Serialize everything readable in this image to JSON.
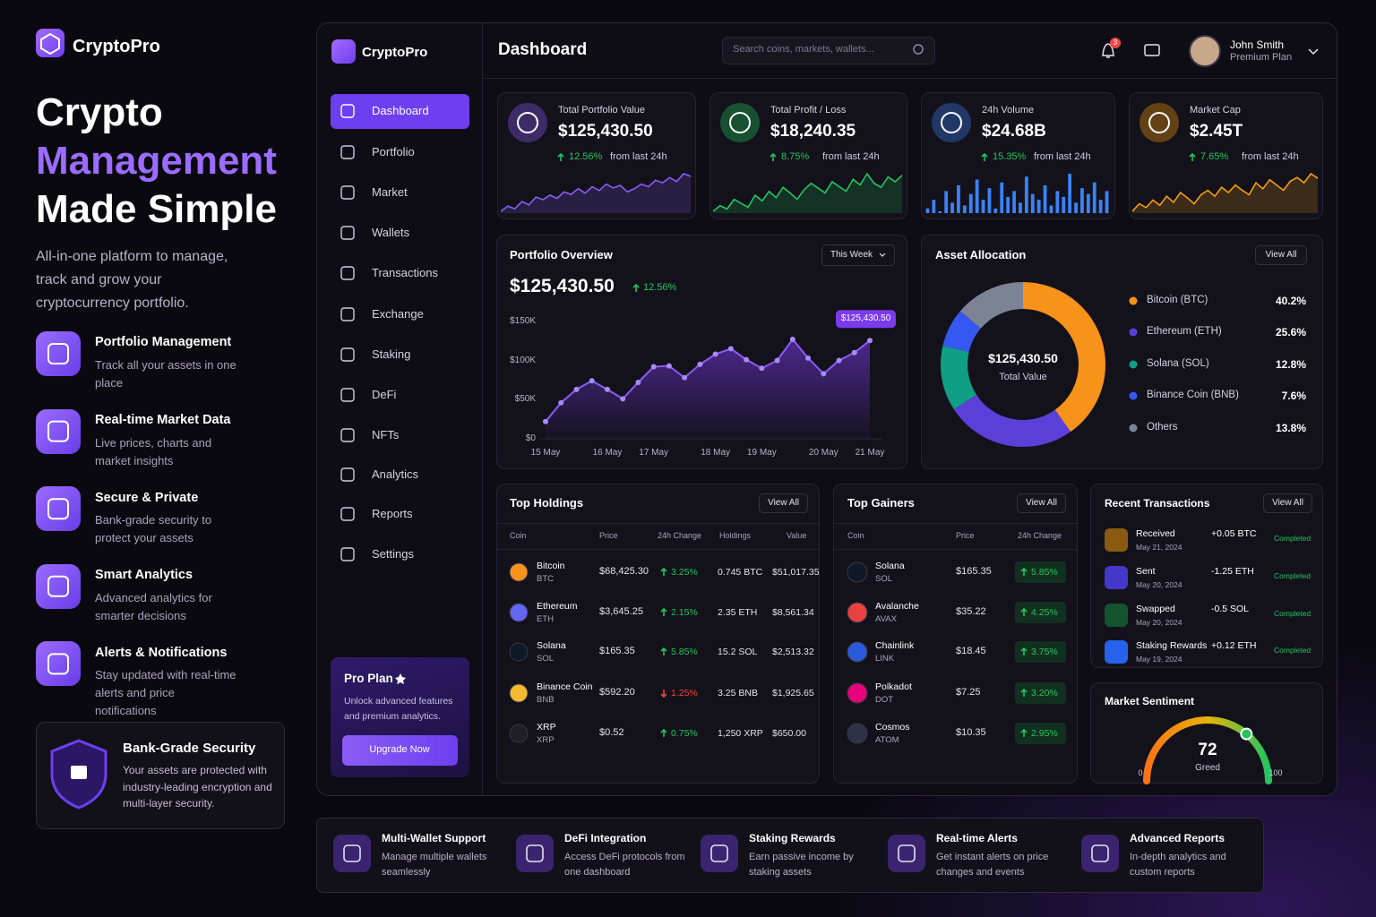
{
  "promo": {
    "brand": "CryptoPro",
    "headline": [
      "Crypto",
      "Management",
      "Made Simple"
    ],
    "subtitle": "All-in-one platform to manage, track and grow your cryptocurrency portfolio.",
    "features": [
      {
        "title": "Portfolio Management",
        "desc": "Track all your assets in one place"
      },
      {
        "title": "Real-time Market Data",
        "desc": "Live prices, charts and market insights"
      },
      {
        "title": "Secure & Private",
        "desc": "Bank-grade security to protect your assets"
      },
      {
        "title": "Smart Analytics",
        "desc": "Advanced analytics for smarter decisions"
      },
      {
        "title": "Alerts & Notifications",
        "desc": "Stay updated with real-time alerts and price notifications"
      }
    ],
    "security": {
      "title": "Bank-Grade Security",
      "desc": "Your assets are protected with industry-leading encryption and multi-layer security."
    }
  },
  "app": {
    "brand": "CryptoPro",
    "nav": [
      "Dashboard",
      "Portfolio",
      "Market",
      "Wallets",
      "Transactions",
      "Exchange",
      "Staking",
      "DeFi",
      "NFTs",
      "Analytics",
      "Reports",
      "Settings"
    ],
    "active": 0,
    "pro": {
      "title": "Pro Plan",
      "desc": "Unlock advanced features and premium analytics.",
      "button": "Upgrade Now"
    }
  },
  "header": {
    "title": "Dashboard",
    "search": "Search coins, markets, wallets...",
    "notifications": "3",
    "user": "John Smith",
    "plan": "Premium Plan"
  },
  "stats": [
    {
      "label": "Total Portfolio Value",
      "value": "$125,430.50",
      "change": "12.56%",
      "note": "from last 24h",
      "color": "#8b5cf6",
      "spark_type": "line",
      "spark": [
        20,
        28,
        24,
        35,
        30,
        42,
        38,
        45,
        40,
        50,
        46,
        55,
        48,
        58,
        52,
        62,
        56,
        60,
        50,
        55,
        62,
        58,
        68,
        64,
        72,
        66,
        78,
        74
      ]
    },
    {
      "label": "Total Profit / Loss",
      "value": "$18,240.35",
      "change": "8.75%",
      "note": "from last 24h",
      "color": "#22c55e",
      "spark_type": "line",
      "spark": [
        15,
        22,
        18,
        30,
        25,
        20,
        35,
        28,
        40,
        32,
        45,
        38,
        30,
        42,
        50,
        44,
        38,
        52,
        46,
        40,
        55,
        48,
        62,
        50,
        45,
        58,
        52,
        60
      ]
    },
    {
      "label": "24h Volume",
      "value": "$24.68B",
      "change": "15.35%",
      "note": "from last 24h",
      "color": "#3b82f6",
      "spark_type": "bar",
      "spark": [
        30,
        45,
        25,
        60,
        40,
        70,
        35,
        55,
        80,
        45,
        65,
        30,
        75,
        50,
        60,
        40,
        85,
        55,
        45,
        70,
        35,
        60,
        50,
        90,
        40,
        65,
        55,
        75,
        45,
        60
      ]
    },
    {
      "label": "Market Cap",
      "value": "$2.45T",
      "change": "7.65%",
      "note": "from last 24h",
      "color": "#f59e0b",
      "spark_type": "line",
      "spark": [
        20,
        30,
        25,
        35,
        28,
        40,
        32,
        45,
        38,
        30,
        42,
        48,
        40,
        52,
        45,
        55,
        48,
        42,
        58,
        50,
        62,
        55,
        48,
        60,
        65,
        58,
        70,
        64
      ]
    }
  ],
  "overview": {
    "title": "Portfolio Overview",
    "period": "This Week",
    "value": "$125,430.50",
    "change": "12.56%",
    "chart": {
      "type": "line",
      "color": "#8b5cf6",
      "grid": false,
      "tooltip": "$125,430.50",
      "categories": [
        "15 May",
        null,
        null,
        null,
        "16 May",
        null,
        null,
        "17 May",
        null,
        null,
        null,
        "18 May",
        null,
        null,
        "19 May",
        null,
        null,
        null,
        "20 May",
        null,
        null,
        "21 May"
      ],
      "values": [
        22000,
        46000,
        63000,
        74000,
        63000,
        51000,
        72000,
        92000,
        93000,
        78000,
        95000,
        108000,
        115000,
        101000,
        90000,
        100000,
        127000,
        103000,
        83000,
        100000,
        110000,
        125430.5
      ],
      "ylim": [
        0,
        160000
      ],
      "yticks": [
        {
          "value": 0,
          "label": "$0"
        },
        {
          "value": 50000,
          "label": "$50K"
        },
        {
          "value": 100000,
          "label": "$100K"
        },
        {
          "value": 150000,
          "label": "$150K"
        }
      ]
    }
  },
  "allocation": {
    "title": "Asset Allocation",
    "button": "View All",
    "center_value": "$125,430.50",
    "center_label": "Total Value",
    "chart": {
      "type": "pie",
      "categories": [
        "Bitcoin (BTC)",
        "Ethereum (ETH)",
        "Solana (SOL)",
        "Binance Coin (BNB)",
        "Others"
      ],
      "values": [
        40.2,
        25.6,
        12.8,
        7.6,
        13.8
      ],
      "value_labels": [
        "40.2%",
        "25.6%",
        "12.8%",
        "7.6%",
        "13.8%"
      ],
      "colors": [
        "#f7931a",
        "#5b3fd9",
        "#0f9f86",
        "#3458f0",
        "#7c8395"
      ]
    }
  },
  "holdings": {
    "title": "Top Holdings",
    "button": "View All",
    "columns": [
      "Coin",
      "Price",
      "24h Change",
      "Holdings",
      "Value"
    ],
    "rows": [
      {
        "name": "Bitcoin",
        "symbol": "BTC",
        "price": "$68,425.30",
        "change": "3.25%",
        "trend": "up",
        "holdings": "0.745 BTC",
        "value": "$51,017.35",
        "color": "#f7931a"
      },
      {
        "name": "Ethereum",
        "symbol": "ETH",
        "price": "$3,645.25",
        "change": "2.15%",
        "trend": "up",
        "holdings": "2.35 ETH",
        "value": "$8,561.34",
        "color": "#6366f1"
      },
      {
        "name": "Solana",
        "symbol": "SOL",
        "price": "$165.35",
        "change": "5.85%",
        "trend": "up",
        "holdings": "15.2 SOL",
        "value": "$2,513.32",
        "color": "#111827"
      },
      {
        "name": "Binance Coin",
        "symbol": "BNB",
        "price": "$592.20",
        "change": "1.25%",
        "trend": "down",
        "holdings": "3.25 BNB",
        "value": "$1,925.65",
        "color": "#f3ba2f"
      },
      {
        "name": "XRP",
        "symbol": "XRP",
        "price": "$0.52",
        "change": "0.75%",
        "trend": "up",
        "holdings": "1,250 XRP",
        "value": "$650.00",
        "color": "#1f1f25"
      }
    ]
  },
  "gainers": {
    "title": "Top Gainers",
    "button": "View All",
    "columns": [
      "Coin",
      "Price",
      "24h Change"
    ],
    "rows": [
      {
        "name": "Solana",
        "symbol": "SOL",
        "price": "$165.35",
        "change": "5.85%",
        "color": "#111827"
      },
      {
        "name": "Avalanche",
        "symbol": "AVAX",
        "price": "$35.22",
        "change": "4.25%",
        "color": "#e84142"
      },
      {
        "name": "Chainlink",
        "symbol": "LINK",
        "price": "$18.45",
        "change": "3.75%",
        "color": "#2a5ada"
      },
      {
        "name": "Polkadot",
        "symbol": "DOT",
        "price": "$7.25",
        "change": "3.20%",
        "color": "#e6007a"
      },
      {
        "name": "Cosmos",
        "symbol": "ATOM",
        "price": "$10.35",
        "change": "2.95%",
        "color": "#2e3148"
      }
    ]
  },
  "transactions": {
    "title": "Recent Transactions",
    "button": "View All",
    "rows": [
      {
        "type": "Received",
        "date": "May 21, 2024",
        "amount": "+0.05 BTC",
        "status": "Completed",
        "color": "#8a5a12"
      },
      {
        "type": "Sent",
        "date": "May 20, 2024",
        "amount": "-1.25 ETH",
        "status": "Completed",
        "color": "#4338ca"
      },
      {
        "type": "Swapped",
        "date": "May 20, 2024",
        "amount": "-0.5 SOL",
        "status": "Completed",
        "color": "#14532d"
      },
      {
        "type": "Staking Rewards",
        "date": "May 19, 2024",
        "amount": "+0.12 ETH",
        "status": "Completed",
        "color": "#2563eb"
      }
    ]
  },
  "sentiment": {
    "title": "Market Sentiment",
    "value": 72,
    "label": "Greed",
    "min": 0,
    "max": 100
  },
  "features": [
    {
      "title": "Multi-Wallet Support",
      "desc": "Manage multiple wallets seamlessly"
    },
    {
      "title": "DeFi Integration",
      "desc": "Access DeFi protocols from one dashboard"
    },
    {
      "title": "Staking Rewards",
      "desc": "Earn passive income by staking assets"
    },
    {
      "title": "Real-time Alerts",
      "desc": "Get instant alerts on price changes and events"
    },
    {
      "title": "Advanced Reports",
      "desc": "In-depth analytics and custom reports"
    }
  ]
}
